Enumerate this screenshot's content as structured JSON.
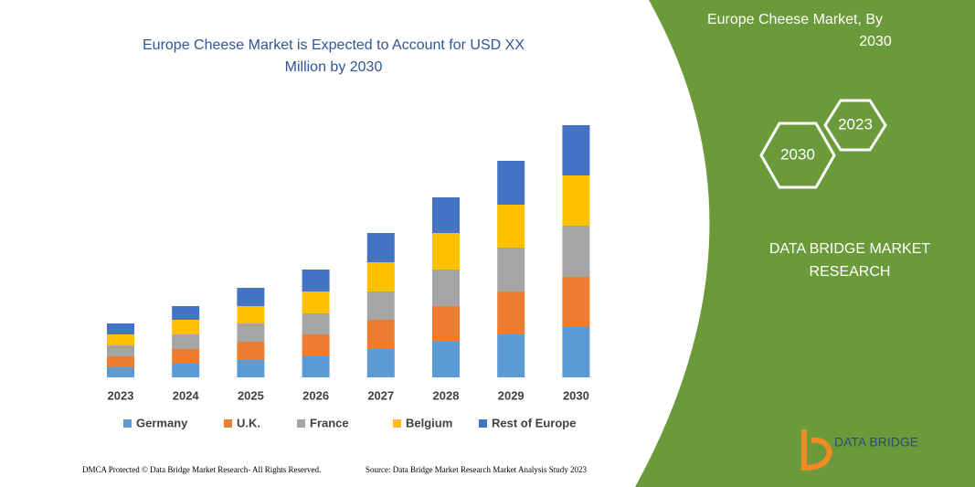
{
  "chart_data": {
    "type": "stacked_bar",
    "title": [
      "Europe Cheese Market is Expected to Account for USD XX",
      "Million by 2030"
    ],
    "categories": [
      "2023",
      "2024",
      "2025",
      "2026",
      "2027",
      "2028",
      "2029",
      "2030"
    ],
    "series": [
      {
        "name": "Germany",
        "color": "#5b9bd5",
        "values": [
          11,
          15,
          19,
          23,
          31,
          39,
          47,
          55
        ]
      },
      {
        "name": "U.K.",
        "color": "#ed7d31",
        "values": [
          12,
          16,
          20,
          24,
          32,
          39,
          47,
          55
        ]
      },
      {
        "name": "France",
        "color": "#a5a5a5",
        "values": [
          12,
          16,
          20,
          23,
          31,
          40,
          48,
          56
        ]
      },
      {
        "name": "Belgium",
        "color": "#ffc000",
        "values": [
          12,
          16,
          19,
          24,
          32,
          40,
          47,
          55
        ]
      },
      {
        "name": "Rest of Europe",
        "color": "#4472c4",
        "values": [
          12,
          15,
          20,
          24,
          32,
          39,
          48,
          55
        ]
      }
    ],
    "ylim": [
      0,
      280
    ]
  },
  "panel": {
    "title": [
      "Europe Cheese Market, By",
      "2030"
    ],
    "hexagons": [
      "2030",
      "2023"
    ],
    "brand": [
      "DATA BRIDGE MARKET",
      "RESEARCH"
    ],
    "logo": "DATA BRIDGE"
  },
  "footer": {
    "left": "DMCA Protected © Data Bridge Market Research-  All Rights Reserved.",
    "right": "Source: Data Bridge Market Research  Market Analysis Study 2023"
  }
}
